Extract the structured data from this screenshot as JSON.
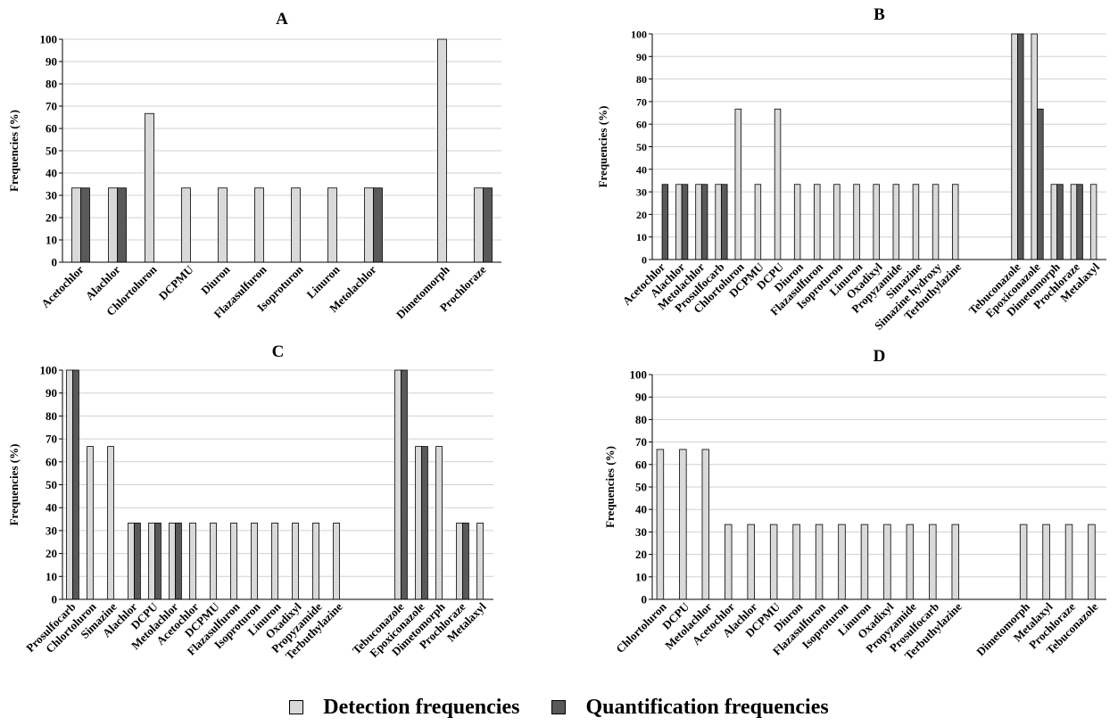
{
  "colors": {
    "detection": "#d9d9d9",
    "quantification": "#595959",
    "grid": "#d0d0d0",
    "axis": "#000000"
  },
  "legend": {
    "detection_label": "Detection frequencies",
    "quantification_label": "Quantification frequencies"
  },
  "chart_data": [
    {
      "type": "bar",
      "title": "A",
      "ylabel": "Frequencies (%)",
      "xlabel": "",
      "ylim": [
        0,
        100
      ],
      "yticks": [
        0,
        10,
        20,
        30,
        40,
        50,
        60,
        70,
        80,
        90,
        100
      ],
      "grid": true,
      "legend_position": "bottom",
      "categories": [
        "Acetochlor",
        "Alachlor",
        "Chlortoluron",
        "DCPMU",
        "Diuron",
        "Flazasulfuron",
        "Isoproturon",
        "Linuron",
        "Metolachlor",
        "",
        "Dimetomorph",
        "Prochloraze"
      ],
      "series": [
        {
          "name": "Detection frequencies",
          "values": [
            33.3,
            33.3,
            66.7,
            33.3,
            33.3,
            33.3,
            33.3,
            33.3,
            33.3,
            0,
            100,
            33.3
          ]
        },
        {
          "name": "Quantification frequencies",
          "values": [
            33.3,
            33.3,
            0,
            0,
            0,
            0,
            0,
            0,
            33.3,
            0,
            0,
            33.3
          ]
        }
      ]
    },
    {
      "type": "bar",
      "title": "B",
      "ylabel": "Frequencies (%)",
      "xlabel": "",
      "ylim": [
        0,
        100
      ],
      "yticks": [
        0,
        10,
        20,
        30,
        40,
        50,
        60,
        70,
        80,
        90,
        100
      ],
      "grid": true,
      "legend_position": "bottom",
      "categories": [
        "Acetochlor",
        "Alachlor",
        "Metolachlor",
        "Prosulfocarb",
        "Chlortoluron",
        "DCPMU",
        "DCPU",
        "Diuron",
        "Flazasulfuron",
        "Isoproturon",
        "Linuron",
        "Oxadixyl",
        "Propyzamide",
        "Simazine",
        "Simazine hydroxy",
        "Terbuthylazine",
        "",
        "",
        "Tebuconazole",
        "Epoxiconazole",
        "Dimetomorph",
        "Prochloraze",
        "Metalaxyl"
      ],
      "series": [
        {
          "name": "Detection frequencies",
          "values": [
            0,
            33.3,
            33.3,
            33.3,
            66.7,
            33.3,
            66.7,
            33.3,
            33.3,
            33.3,
            33.3,
            33.3,
            33.3,
            33.3,
            33.3,
            33.3,
            0,
            0,
            100,
            100,
            33.3,
            33.3,
            33.3
          ]
        },
        {
          "name": "Quantification frequencies",
          "values": [
            33.3,
            33.3,
            33.3,
            33.3,
            0,
            0,
            0,
            0,
            0,
            0,
            0,
            0,
            0,
            0,
            0,
            0,
            0,
            0,
            100,
            66.7,
            33.3,
            33.3,
            0
          ]
        }
      ]
    },
    {
      "type": "bar",
      "title": "C",
      "ylabel": "Frequencies (%)",
      "xlabel": "",
      "ylim": [
        0,
        100
      ],
      "yticks": [
        0,
        10,
        20,
        30,
        40,
        50,
        60,
        70,
        80,
        90,
        100
      ],
      "grid": true,
      "legend_position": "bottom",
      "categories": [
        "Prosulfocarb",
        "Chlortoluron",
        "Simazine",
        "Alachlor",
        "DCPU",
        "Metolachlor",
        "Acetochlor",
        "DCPMU",
        "Flazasulfuron",
        "Isoproturon",
        "Linuron",
        "Oxadixyl",
        "Propyzamide",
        "Terbuthylazine",
        "",
        "",
        "Tebuconazole",
        "Epoxiconazole",
        "Dimetomorph",
        "Prochloraze",
        "Metalaxyl"
      ],
      "series": [
        {
          "name": "Detection frequencies",
          "values": [
            100,
            66.7,
            66.7,
            33.3,
            33.3,
            33.3,
            33.3,
            33.3,
            33.3,
            33.3,
            33.3,
            33.3,
            33.3,
            33.3,
            0,
            0,
            100,
            66.7,
            66.7,
            33.3,
            33.3
          ]
        },
        {
          "name": "Quantification frequencies",
          "values": [
            100,
            0,
            0,
            33.3,
            33.3,
            33.3,
            0,
            0,
            0,
            0,
            0,
            0,
            0,
            0,
            0,
            0,
            100,
            66.7,
            0,
            33.3,
            0
          ]
        }
      ]
    },
    {
      "type": "bar",
      "title": "D",
      "ylabel": "Frequencies (%)",
      "xlabel": "",
      "ylim": [
        0,
        100
      ],
      "yticks": [
        0,
        10,
        20,
        30,
        40,
        50,
        60,
        70,
        80,
        90,
        100
      ],
      "grid": true,
      "legend_position": "bottom",
      "categories": [
        "Chlortoluron",
        "DCPU",
        "Metolachlor",
        "Acetochlor",
        "Alachlor",
        "DCPMU",
        "Diuron",
        "Flazasulfuron",
        "Isoproturon",
        "Linuron",
        "Oxadixyl",
        "Propyzamide",
        "Prosulfocarb",
        "Terbuthylazine",
        "",
        "",
        "Dimetomorph",
        "Metalaxyl",
        "Prochloraze",
        "Tebuconazole"
      ],
      "series": [
        {
          "name": "Detection frequencies",
          "values": [
            66.7,
            66.7,
            66.7,
            33.3,
            33.3,
            33.3,
            33.3,
            33.3,
            33.3,
            33.3,
            33.3,
            33.3,
            33.3,
            33.3,
            0,
            0,
            33.3,
            33.3,
            33.3,
            33.3
          ]
        },
        {
          "name": "Quantification frequencies",
          "values": [
            0,
            0,
            0,
            0,
            0,
            0,
            0,
            0,
            0,
            0,
            0,
            0,
            0,
            0,
            0,
            0,
            0,
            0,
            0,
            0
          ]
        }
      ]
    }
  ]
}
